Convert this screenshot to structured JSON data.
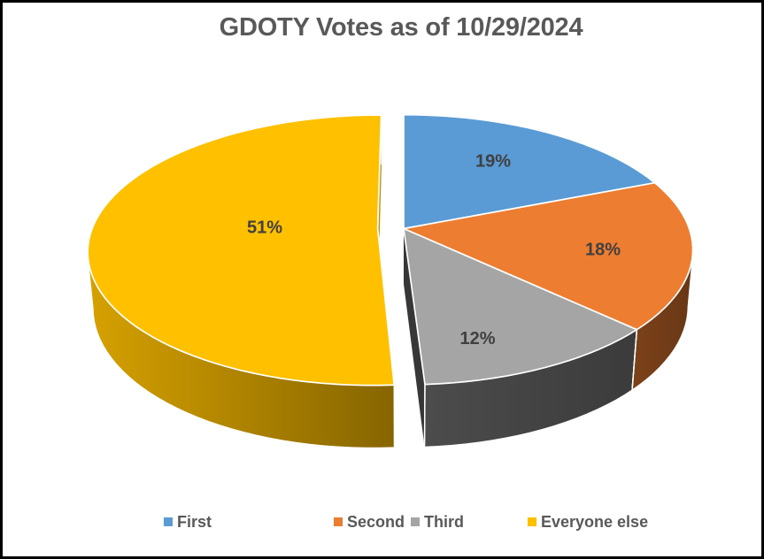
{
  "title": "GDOTY Votes as of 10/29/2024",
  "chart_data": {
    "type": "pie",
    "pie_3d": true,
    "exploded": true,
    "title": "GDOTY Votes as of 10/29/2024",
    "categories": [
      "First",
      "Second",
      "Third",
      "Everyone else"
    ],
    "values": [
      19,
      18,
      12,
      51
    ],
    "labels": [
      "19%",
      "18%",
      "12%",
      "51%"
    ],
    "colors": [
      "#5B9BD5",
      "#ED7D31",
      "#A5A5A5",
      "#FFC000"
    ],
    "exploded_slices": [
      false,
      false,
      false,
      true
    ],
    "start_angle_deg": 0,
    "direction": "clockwise",
    "legend_position": "bottom"
  },
  "frame": {
    "border_color": "#000000",
    "background": "#FFFFFF"
  },
  "text_colors": {
    "title": "#595959",
    "labels": "#404040",
    "legend": "#595959"
  }
}
